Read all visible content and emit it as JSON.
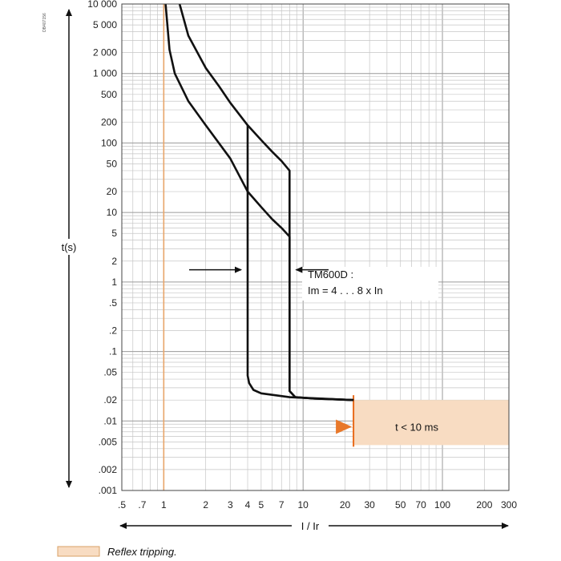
{
  "doc_code": "DB407156",
  "chart_data": {
    "type": "line",
    "title": "",
    "xlabel": "I / Ir",
    "ylabel": "t(s)",
    "x_scale": "log",
    "y_scale": "log",
    "xlim": [
      0.5,
      300
    ],
    "ylim": [
      0.001,
      10000
    ],
    "grid": true,
    "x_ticks": [
      {
        "v": 0.5,
        "t": ".5"
      },
      {
        "v": 0.7,
        "t": ".7"
      },
      {
        "v": 1,
        "t": "1"
      },
      {
        "v": 2,
        "t": "2"
      },
      {
        "v": 3,
        "t": "3"
      },
      {
        "v": 4,
        "t": "4"
      },
      {
        "v": 5,
        "t": "5"
      },
      {
        "v": 7,
        "t": "7"
      },
      {
        "v": 10,
        "t": "10"
      },
      {
        "v": 20,
        "t": "20"
      },
      {
        "v": 30,
        "t": "30"
      },
      {
        "v": 50,
        "t": "50"
      },
      {
        "v": 70,
        "t": "70"
      },
      {
        "v": 100,
        "t": "100"
      },
      {
        "v": 200,
        "t": "200"
      },
      {
        "v": 300,
        "t": "300"
      }
    ],
    "y_ticks": [
      {
        "v": 10000,
        "t": "10 000"
      },
      {
        "v": 5000,
        "t": "5 000"
      },
      {
        "v": 2000,
        "t": "2 000"
      },
      {
        "v": 1000,
        "t": "1 000"
      },
      {
        "v": 500,
        "t": "500"
      },
      {
        "v": 200,
        "t": "200"
      },
      {
        "v": 100,
        "t": "100"
      },
      {
        "v": 50,
        "t": "50"
      },
      {
        "v": 20,
        "t": "20"
      },
      {
        "v": 10,
        "t": "10"
      },
      {
        "v": 5,
        "t": "5"
      },
      {
        "v": 2,
        "t": "2"
      },
      {
        "v": 1,
        "t": "1"
      },
      {
        "v": 0.5,
        "t": ".5"
      },
      {
        "v": 0.2,
        "t": ".2"
      },
      {
        "v": 0.1,
        "t": ".1"
      },
      {
        "v": 0.05,
        "t": ".05"
      },
      {
        "v": 0.02,
        "t": ".02"
      },
      {
        "v": 0.01,
        "t": ".01"
      },
      {
        "v": 0.005,
        "t": ".005"
      },
      {
        "v": 0.002,
        "t": ".002"
      },
      {
        "v": 0.001,
        "t": ".001"
      }
    ],
    "series": [
      {
        "color": "#111111",
        "points": [
          [
            1.03,
            10000
          ],
          [
            1.1,
            2200
          ],
          [
            1.2,
            1000
          ],
          [
            1.5,
            400
          ],
          [
            2,
            180
          ],
          [
            3,
            60
          ],
          [
            4,
            20
          ],
          [
            5,
            12
          ],
          [
            6,
            8
          ],
          [
            7,
            6
          ],
          [
            8,
            4.5
          ],
          [
            8,
            0.027
          ],
          [
            8.8,
            0.022
          ],
          [
            12,
            0.021
          ],
          [
            23,
            0.02
          ]
        ]
      },
      {
        "color": "#111111",
        "points": [
          [
            1.3,
            10000
          ],
          [
            1.5,
            3500
          ],
          [
            2,
            1200
          ],
          [
            2.5,
            650
          ],
          [
            3,
            380
          ],
          [
            4,
            180
          ],
          [
            5,
            110
          ],
          [
            6,
            75
          ],
          [
            7,
            55
          ],
          [
            8,
            40
          ],
          [
            8,
            0.027
          ],
          [
            8.8,
            0.022
          ],
          [
            12,
            0.021
          ],
          [
            23,
            0.02
          ]
        ]
      },
      {
        "color": "#111111",
        "points": [
          [
            4,
            180
          ],
          [
            4,
            0.045
          ],
          [
            4.1,
            0.035
          ],
          [
            4.4,
            0.028
          ],
          [
            5,
            0.025
          ],
          [
            8,
            0.022
          ],
          [
            23,
            0.02
          ]
        ]
      }
    ],
    "highlight_x": 1,
    "highlight_color": "#e8a56a",
    "reflex_band": {
      "x_from": 23,
      "x_to": 300,
      "y_from": 0.0045,
      "y_to": 0.02,
      "label": "t < 10 ms",
      "color": "#f8dcc2"
    },
    "annotations": {
      "tm_label_line1": "TM600D :",
      "tm_label_line2": "Im = 4 . . . 8 x In",
      "left_arrow_at_x": 4,
      "right_arrow_at_x": 8,
      "arrow_y": 1.5
    },
    "legend": {
      "label": "Reflex tripping.",
      "swatch_color": "#f8dcc2",
      "position": "bottom-left"
    }
  }
}
